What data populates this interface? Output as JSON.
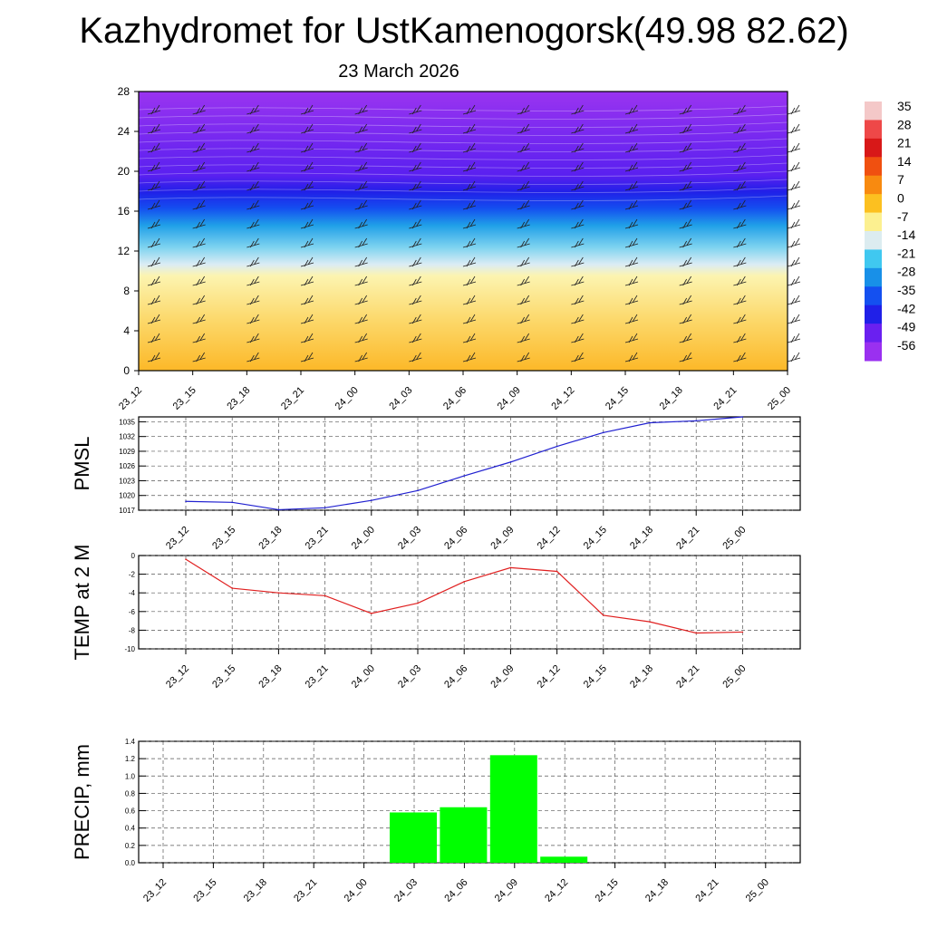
{
  "title": "Kazhydromet for UstKamenogorsk(49.98 82.62)",
  "subtitle": "23 March 2026",
  "chart_data": [
    {
      "type": "heatmap",
      "description_text": "",
      "x": [
        "23_12",
        "23_15",
        "23_18",
        "23_21",
        "24_00",
        "24_03",
        "24_06",
        "24_09",
        "24_12",
        "24_15",
        "24_18",
        "24_21",
        "25_00"
      ],
      "y_ticks": [
        0,
        4,
        8,
        12,
        16,
        20,
        24,
        28
      ],
      "ylim": [
        0,
        28
      ],
      "colorbar": {
        "labels": [
          "35",
          "28",
          "21",
          "14",
          "7",
          "0",
          "-7",
          "-14",
          "-21",
          "-28",
          "-35",
          "-42",
          "-49",
          "-56"
        ],
        "colors": [
          "#f4c8c8",
          "#ee4848",
          "#d81818",
          "#f05010",
          "#f88a10",
          "#fcc020",
          "#fcf090",
          "#dcecf0",
          "#40c8f0",
          "#1890e8",
          "#1450f0",
          "#2020e8",
          "#6a20f0",
          "#9a30f0"
        ]
      }
    },
    {
      "type": "line",
      "ylabel": "PMSL",
      "x": [
        "23_12",
        "23_15",
        "23_18",
        "23_21",
        "24_00",
        "24_03",
        "24_06",
        "24_09",
        "24_12",
        "24_15",
        "24_18",
        "24_21",
        "25_00"
      ],
      "values": [
        1018.8,
        1018.6,
        1017.1,
        1017.5,
        1019.0,
        1021.0,
        1024.0,
        1026.8,
        1030.0,
        1032.8,
        1034.8,
        1035.2,
        1036.0
      ],
      "y_ticks": [
        1017,
        1020,
        1023,
        1026,
        1029,
        1032,
        1035
      ],
      "ylim": [
        1017,
        1036
      ],
      "color": "#2020d0"
    },
    {
      "type": "line",
      "ylabel": "TEMP at 2 M",
      "x": [
        "23_12",
        "23_15",
        "23_18",
        "23_21",
        "24_00",
        "24_03",
        "24_06",
        "24_09",
        "24_12",
        "24_15",
        "24_18",
        "24_21",
        "25_00"
      ],
      "values": [
        -0.4,
        -3.5,
        -4.0,
        -4.3,
        -6.2,
        -5.1,
        -2.8,
        -1.3,
        -1.7,
        -6.4,
        -7.1,
        -8.3,
        -8.2
      ],
      "y_ticks": [
        0,
        -2,
        -4,
        -6,
        -8,
        -10
      ],
      "ylim": [
        -10,
        0
      ],
      "color": "#e02020"
    },
    {
      "type": "bar",
      "ylabel": "PRECIP, mm",
      "x": [
        "23_12",
        "23_15",
        "23_18",
        "23_21",
        "24_00",
        "24_03",
        "24_06",
        "24_09",
        "24_12",
        "24_15",
        "24_18",
        "24_21",
        "25_00"
      ],
      "values": [
        0,
        0,
        0,
        0,
        0,
        0.58,
        0.64,
        1.24,
        0.07,
        0,
        0,
        0,
        0
      ],
      "y_ticks": [
        0.0,
        0.2,
        0.4,
        0.6,
        0.8,
        1.0,
        1.2,
        1.4
      ],
      "ylim": [
        0,
        1.4
      ],
      "color": "#00ff00"
    }
  ]
}
